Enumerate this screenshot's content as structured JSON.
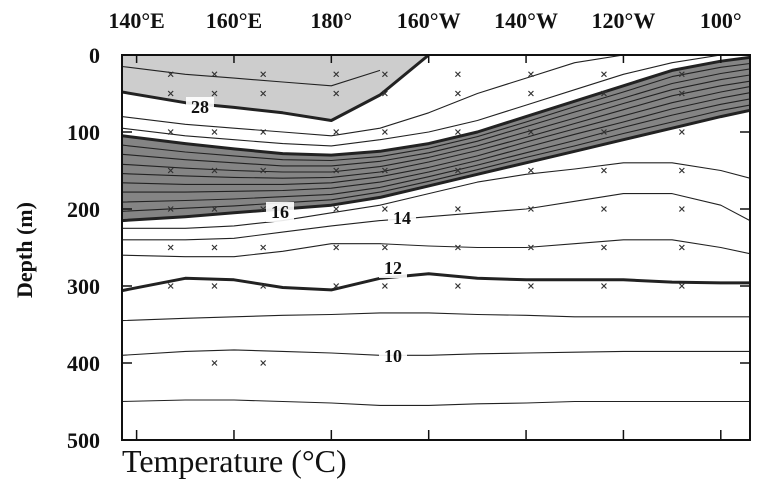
{
  "chart_data": {
    "type": "contour",
    "x_label": "Temperature (°C)",
    "y_label": "Depth (m)",
    "xlim": [
      137,
      266
    ],
    "ylim": [
      0,
      500
    ],
    "y_inverted": true,
    "xticks": [
      {
        "value": 140,
        "label": "140°E"
      },
      {
        "value": 160,
        "label": "160°E"
      },
      {
        "value": 180,
        "label": "180°"
      },
      {
        "value": 200,
        "label": "160°W"
      },
      {
        "value": 220,
        "label": "140°W"
      },
      {
        "value": 240,
        "label": "120°W"
      },
      {
        "value": 260,
        "label": "100°"
      }
    ],
    "yticks": [
      0,
      100,
      200,
      300,
      400,
      500
    ],
    "x": [
      137,
      150,
      160,
      170,
      180,
      190,
      200,
      210,
      220,
      230,
      240,
      250,
      260,
      266
    ],
    "line_color": "#222",
    "bold_levels": [
      28,
      25,
      16,
      12
    ],
    "bands": [
      {
        "above": 28,
        "color": "#c4c4c4"
      },
      {
        "between": [
          25,
          16
        ],
        "color": "#6f6f6f"
      }
    ],
    "contours": [
      {
        "level": 29,
        "depths": [
          15,
          25,
          30,
          35,
          40,
          20,
          null,
          null,
          null,
          null,
          null,
          null,
          null,
          null
        ]
      },
      {
        "level": 28,
        "depths": [
          48,
          62,
          68,
          75,
          85,
          52,
          0,
          null,
          null,
          null,
          null,
          null,
          null,
          null
        ]
      },
      {
        "level": 27,
        "depths": [
          80,
          90,
          95,
          100,
          105,
          95,
          75,
          50,
          30,
          10,
          0,
          null,
          null,
          null
        ]
      },
      {
        "level": 26,
        "depths": [
          95,
          105,
          110,
          115,
          118,
          110,
          100,
          85,
          65,
          45,
          25,
          10,
          0,
          null
        ]
      },
      {
        "level": 25,
        "depths": [
          105,
          115,
          122,
          128,
          130,
          125,
          115,
          100,
          80,
          60,
          40,
          20,
          8,
          3
        ]
      },
      {
        "level": 24,
        "depths": [
          117,
          126,
          131,
          136,
          137,
          132,
          121,
          106,
          87,
          67,
          48,
          28,
          16,
          11
        ]
      },
      {
        "level": 23,
        "depths": [
          129,
          136,
          140,
          144,
          144,
          138,
          127,
          112,
          93,
          74,
          56,
          37,
          24,
          18
        ]
      },
      {
        "level": 22,
        "depths": [
          142,
          147,
          150,
          152,
          152,
          145,
          133,
          118,
          100,
          82,
          63,
          45,
          32,
          26
        ]
      },
      {
        "level": 21,
        "depths": [
          154,
          157,
          159,
          160,
          159,
          152,
          139,
          124,
          107,
          89,
          71,
          53,
          40,
          34
        ]
      },
      {
        "level": 20,
        "depths": [
          166,
          168,
          168,
          168,
          166,
          158,
          146,
          131,
          113,
          96,
          79,
          62,
          48,
          41
        ]
      },
      {
        "level": 19,
        "depths": [
          178,
          178,
          177,
          176,
          173,
          165,
          152,
          137,
          120,
          103,
          87,
          70,
          56,
          49
        ]
      },
      {
        "level": 18,
        "depths": [
          191,
          189,
          187,
          184,
          181,
          172,
          158,
          143,
          127,
          111,
          94,
          78,
          64,
          57
        ]
      },
      {
        "level": 17,
        "depths": [
          203,
          199,
          196,
          192,
          188,
          178,
          164,
          149,
          133,
          118,
          102,
          87,
          72,
          65
        ]
      },
      {
        "level": 16,
        "depths": [
          215,
          210,
          205,
          200,
          195,
          185,
          170,
          155,
          140,
          125,
          110,
          95,
          80,
          72
        ]
      },
      {
        "level": 15,
        "depths": [
          225,
          225,
          222,
          215,
          205,
          195,
          180,
          165,
          155,
          148,
          140,
          140,
          150,
          160
        ]
      },
      {
        "level": 14,
        "depths": [
          240,
          240,
          238,
          230,
          222,
          215,
          210,
          205,
          200,
          190,
          180,
          180,
          195,
          215
        ]
      },
      {
        "level": 13,
        "depths": [
          260,
          262,
          262,
          255,
          245,
          245,
          248,
          250,
          250,
          245,
          240,
          240,
          250,
          258
        ]
      },
      {
        "level": 12,
        "depths": [
          306,
          290,
          292,
          302,
          305,
          290,
          284,
          290,
          292,
          292,
          292,
          295,
          296,
          296
        ]
      },
      {
        "level": 11,
        "depths": [
          345,
          342,
          340,
          338,
          337,
          335,
          335,
          337,
          338,
          340,
          340,
          340,
          340,
          340
        ]
      },
      {
        "level": 10,
        "depths": [
          390,
          385,
          383,
          385,
          387,
          390,
          390,
          388,
          387,
          386,
          385,
          385,
          385,
          385
        ]
      },
      {
        "level": 9,
        "depths": [
          450,
          448,
          448,
          450,
          452,
          455,
          455,
          453,
          452,
          450,
          450,
          450,
          450,
          450
        ]
      }
    ],
    "labeled_levels": [
      28,
      16,
      14,
      12,
      10
    ],
    "stations": {
      "x": [
        147,
        147,
        147,
        147,
        147,
        147,
        147,
        156,
        156,
        156,
        156,
        156,
        156,
        156,
        156,
        166,
        166,
        166,
        166,
        166,
        166,
        166,
        166,
        181,
        181,
        181,
        181,
        181,
        181,
        181,
        191,
        191,
        191,
        191,
        191,
        191,
        191,
        206,
        206,
        206,
        206,
        206,
        206,
        206,
        221,
        221,
        221,
        221,
        221,
        221,
        221,
        236,
        236,
        236,
        236,
        236,
        236,
        236,
        252,
        252,
        252,
        252,
        252,
        252,
        252
      ],
      "depth": [
        25,
        50,
        100,
        150,
        200,
        250,
        300,
        25,
        50,
        100,
        150,
        200,
        250,
        300,
        400,
        25,
        50,
        100,
        150,
        200,
        250,
        300,
        400,
        25,
        50,
        100,
        150,
        200,
        250,
        300,
        25,
        50,
        100,
        150,
        200,
        250,
        300,
        25,
        50,
        100,
        150,
        200,
        250,
        300,
        25,
        50,
        100,
        150,
        200,
        250,
        300,
        25,
        50,
        100,
        150,
        200,
        250,
        300,
        25,
        50,
        100,
        150,
        200,
        250,
        300
      ]
    }
  }
}
